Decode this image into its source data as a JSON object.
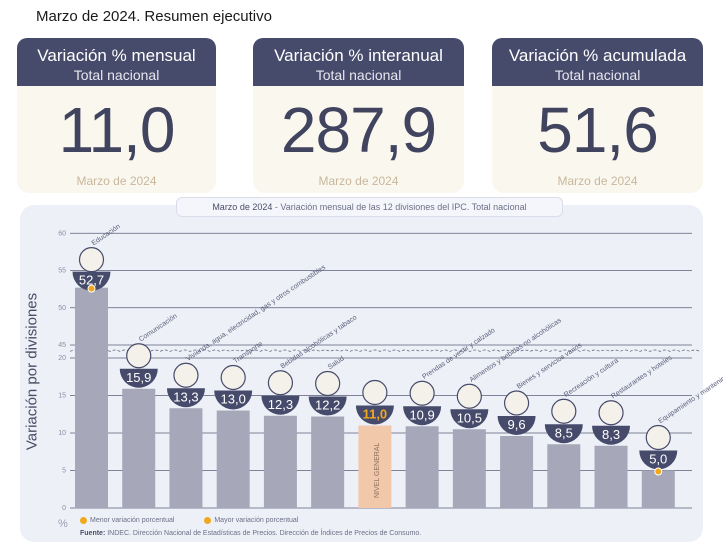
{
  "page_title": "Marzo de 2024. Resumen ejecutivo",
  "cards": [
    {
      "title": "Variación % mensual",
      "subtitle": "Total nacional",
      "value": "11,0",
      "date": "Marzo de 2024"
    },
    {
      "title": "Variación % interanual",
      "subtitle": "Total nacional",
      "value": "287,9",
      "date": "Marzo de 2024"
    },
    {
      "title": "Variación % acumulada",
      "subtitle": "Total nacional",
      "value": "51,6",
      "date": "Marzo de 2024"
    }
  ],
  "chart_data": {
    "type": "bar",
    "title_prefix": "Marzo de 2024",
    "title": " - Variación mensual de las 12 divisiones del IPC. Total nacional",
    "ylabel": "Variación por divisiones",
    "yunit": "%",
    "ylim": [
      0,
      60
    ],
    "axis_break": [
      20,
      45
    ],
    "yticks": [
      0,
      5,
      10,
      15,
      20,
      45,
      50,
      55,
      60
    ],
    "categories": [
      "Educación",
      "Comunicación",
      "Vivienda, agua, electricidad, gas y otros combustibles",
      "Transporte",
      "Bebidas alcohólicas y tabaco",
      "Salud",
      "NIVEL GENERAL",
      "Prendas de vestir y calzado",
      "Alimentos y bebidas no alcohólicas",
      "Bienes y servicios varios",
      "Recreación y cultura",
      "Restaurantes y hoteles",
      "Equipamiento y mantenimiento del hogar"
    ],
    "values": [
      52.7,
      15.9,
      13.3,
      13.0,
      12.3,
      12.2,
      11.0,
      10.9,
      10.5,
      9.6,
      8.5,
      8.3,
      5.0
    ],
    "value_labels": [
      "52,7",
      "15,9",
      "13,3",
      "13,0",
      "12,3",
      "12,2",
      "11,0",
      "10,9",
      "10,5",
      "9,6",
      "8,5",
      "8,3",
      "5,0"
    ],
    "icons": [
      "book-icon",
      "phone-icon",
      "bulb-icon",
      "bus-icon",
      "bottle-icon",
      "medical-cross-icon",
      "basket-icon",
      "shirt-icon",
      "grocery-icon",
      "brush-icon",
      "umbrella-icon",
      "cutlery-icon",
      "stove-icon"
    ],
    "highlight_index": 6,
    "max_marker_index": 0,
    "min_marker_index": 12,
    "colors": {
      "bar": "#a6a8b9",
      "highlight": "#f2c8ab",
      "badge": "#474b6b",
      "highlight_text": "#f0a91f",
      "marker": "#f0a91f"
    }
  },
  "legend": {
    "min_label": "Menor variación porcentual",
    "max_label": "Mayor variación porcentual"
  },
  "source": {
    "label": "Fuente:",
    "text": " INDEC. Dirección Nacional de Estadísticas de Precios. Dirección de Índices de Precios de Consumo."
  }
}
